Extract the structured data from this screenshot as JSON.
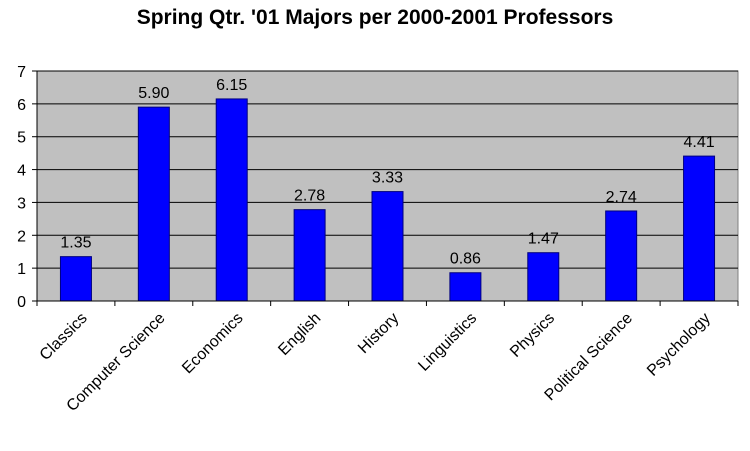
{
  "chart_data": {
    "type": "bar",
    "title": "Spring Qtr. '01 Majors per 2000-2001 Professors",
    "xlabel": "",
    "ylabel": "",
    "categories": [
      "Classics",
      "Computer Science",
      "Economics",
      "English",
      "History",
      "Linguistics",
      "Physics",
      "Political Science",
      "Psychology"
    ],
    "values": [
      1.35,
      5.9,
      6.15,
      2.78,
      3.33,
      0.86,
      1.47,
      2.74,
      4.41
    ],
    "value_labels": [
      "1.35",
      "5.90",
      "6.15",
      "2.78",
      "3.33",
      "0.86",
      "1.47",
      "2.74",
      "4.41"
    ],
    "ylim": [
      0,
      7
    ],
    "yticks": [
      "0",
      "1",
      "2",
      "3",
      "4",
      "5",
      "6",
      "7"
    ],
    "grid": true,
    "legend": "none",
    "colors": {
      "bar": "#0000ff",
      "bar_edge": "#000080",
      "plot_bg": "#c0c0c0",
      "grid": "#000000"
    }
  }
}
